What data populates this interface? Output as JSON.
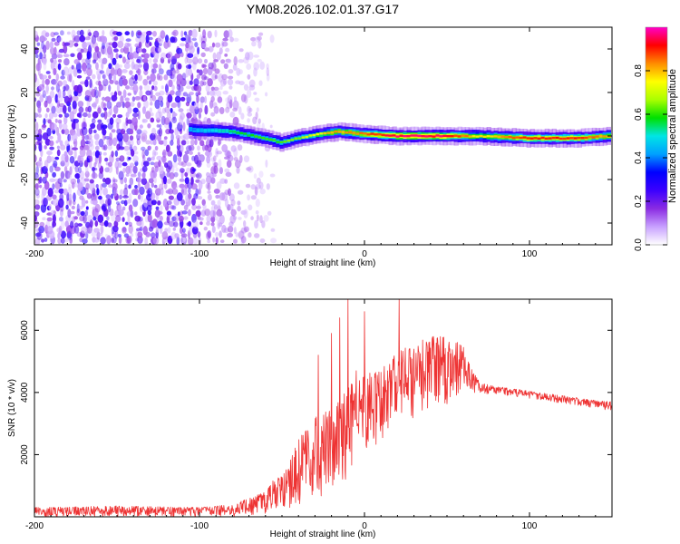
{
  "figure_title": "YM08.2026.102.01.37.G17",
  "chart_data": [
    {
      "type": "heatmap",
      "title": "YM08.2026.102.01.37.G17",
      "xlabel": "Height of straight line (km)",
      "ylabel": "Frequency (Hz)",
      "xlim": [
        -200,
        150
      ],
      "ylim": [
        -50,
        50
      ],
      "xticks": [
        -200,
        -100,
        0,
        100
      ],
      "yticks": [
        -40,
        -20,
        0,
        20,
        40
      ],
      "colorbar": {
        "label": "Normalized spectral amplitude",
        "range": [
          0,
          1
        ],
        "ticks": [
          0.0,
          0.2,
          0.4,
          0.6,
          0.8
        ],
        "colors": [
          "#ffffff",
          "#c8a0ff",
          "#8a2be2",
          "#3b00ff",
          "#0000ff",
          "#00a0ff",
          "#00e5e5",
          "#00e000",
          "#aaff00",
          "#ffff00",
          "#ff8c00",
          "#ff0000",
          "#ff00c8"
        ]
      },
      "signal_band": {
        "x_start": -105,
        "x_end": 150,
        "center_frequency": [
          [
            -105,
            3
          ],
          [
            -80,
            2
          ],
          [
            -60,
            -1
          ],
          [
            -50,
            -3
          ],
          [
            -40,
            -1
          ],
          [
            -25,
            1
          ],
          [
            -15,
            2
          ],
          [
            0,
            1
          ],
          [
            20,
            0
          ],
          [
            50,
            0
          ],
          [
            70,
            0
          ],
          [
            100,
            -1
          ],
          [
            130,
            -1
          ],
          [
            150,
            0
          ]
        ],
        "peak_amplitude": [
          [
            -105,
            0.4
          ],
          [
            -80,
            0.55
          ],
          [
            -60,
            0.6
          ],
          [
            -40,
            0.65
          ],
          [
            -20,
            0.8
          ],
          [
            0,
            0.85
          ],
          [
            20,
            0.95
          ],
          [
            50,
            0.95
          ],
          [
            70,
            0.75
          ],
          [
            100,
            0.9
          ],
          [
            130,
            0.9
          ],
          [
            150,
            0.8
          ]
        ]
      },
      "noise_region": {
        "x_start": -200,
        "x_end": -55,
        "dense_until": -105
      }
    },
    {
      "type": "line",
      "xlabel": "Height of straight line (km)",
      "ylabel": "SNR (10 * v/v)",
      "xlim": [
        -200,
        150
      ],
      "ylim": [
        0,
        7000
      ],
      "xticks": [
        -200,
        -100,
        0,
        100
      ],
      "yticks": [
        2000,
        4000,
        6000
      ],
      "series": [
        {
          "name": "SNR",
          "color": "#ee3333",
          "envelope_x": [
            -200,
            -150,
            -100,
            -80,
            -70,
            -60,
            -55,
            -50,
            -45,
            -40,
            -30,
            -20,
            -10,
            0,
            10,
            20,
            30,
            40,
            50,
            60,
            65,
            70,
            80,
            100,
            120,
            140,
            150
          ],
          "envelope_low": [
            0,
            0,
            0,
            0,
            50,
            100,
            100,
            50,
            200,
            300,
            500,
            800,
            1200,
            1800,
            2200,
            2800,
            3200,
            3400,
            3600,
            3800,
            3900,
            3950,
            3950,
            3800,
            3650,
            3500,
            3400
          ],
          "envelope_high": [
            300,
            350,
            300,
            400,
            600,
            800,
            1200,
            1300,
            1800,
            2500,
            3200,
            3500,
            4200,
            4600,
            4800,
            5300,
            5600,
            5800,
            5800,
            5500,
            4800,
            4300,
            4200,
            4050,
            3900,
            3750,
            3700
          ],
          "spikes": [
            [
              -10,
              7000
            ],
            [
              0,
              6600
            ],
            [
              -15,
              6400
            ],
            [
              21,
              7000
            ],
            [
              -20,
              5900
            ],
            [
              -28,
              5200
            ],
            [
              -5,
              4700
            ]
          ]
        }
      ]
    }
  ]
}
